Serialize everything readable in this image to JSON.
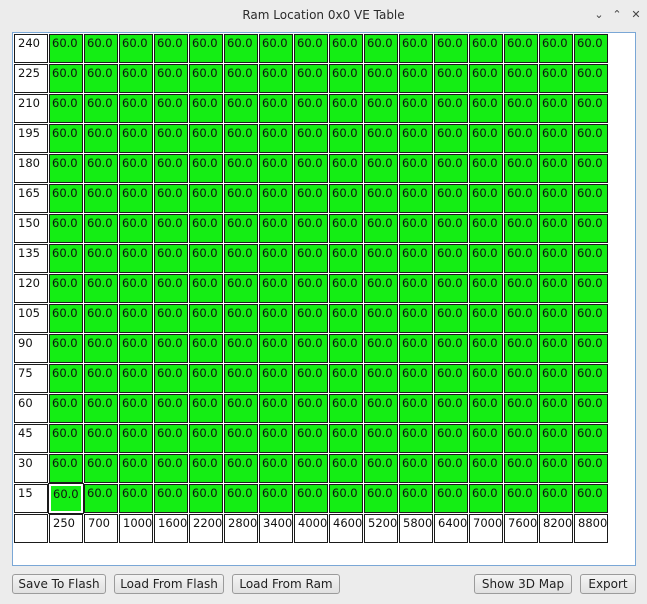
{
  "window": {
    "title": "Ram Location 0x0 VE Table",
    "buttons": {
      "minimize": "⌄",
      "maximize": "⌃",
      "close": "✕"
    }
  },
  "table": {
    "row_headers": [
      "240",
      "225",
      "210",
      "195",
      "180",
      "165",
      "150",
      "135",
      "120",
      "105",
      "90",
      "75",
      "60",
      "45",
      "30",
      "15"
    ],
    "col_headers": [
      "250",
      "700",
      "1000",
      "1600",
      "2200",
      "2800",
      "3400",
      "4000",
      "4600",
      "5200",
      "5800",
      "6400",
      "7000",
      "7600",
      "8200",
      "8800"
    ],
    "cell_value": "60.0",
    "selected": {
      "row": 15,
      "col": 0
    },
    "cell_color": "#14ee14"
  },
  "buttons": {
    "save_to_flash": "Save To Flash",
    "load_from_flash": "Load From Flash",
    "load_from_ram": "Load From Ram",
    "show_3d_map": "Show 3D Map",
    "export": "Export"
  }
}
